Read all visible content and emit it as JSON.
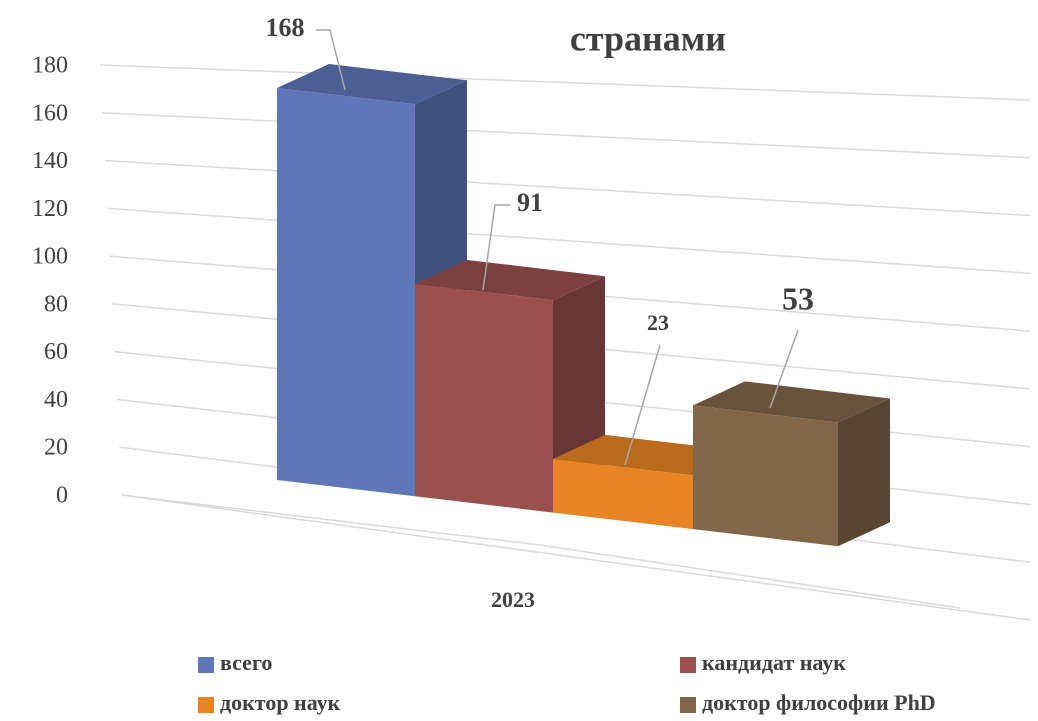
{
  "chart_data": {
    "type": "bar",
    "title": "странами",
    "categories": [
      "2023"
    ],
    "series": [
      {
        "name": "всего",
        "color": "#5f77b8",
        "values": [
          168
        ]
      },
      {
        "name": "кандидат наук",
        "color": "#9b5050",
        "values": [
          91
        ]
      },
      {
        "name": "доктор наук",
        "color": "#e88424",
        "values": [
          23
        ]
      },
      {
        "name": "доктор философии PhD",
        "color": "#82664a",
        "values": [
          53
        ]
      }
    ],
    "ylim": [
      0,
      180
    ],
    "yticks": [
      0,
      20,
      40,
      60,
      80,
      100,
      120,
      140,
      160,
      180
    ],
    "grid": true
  }
}
